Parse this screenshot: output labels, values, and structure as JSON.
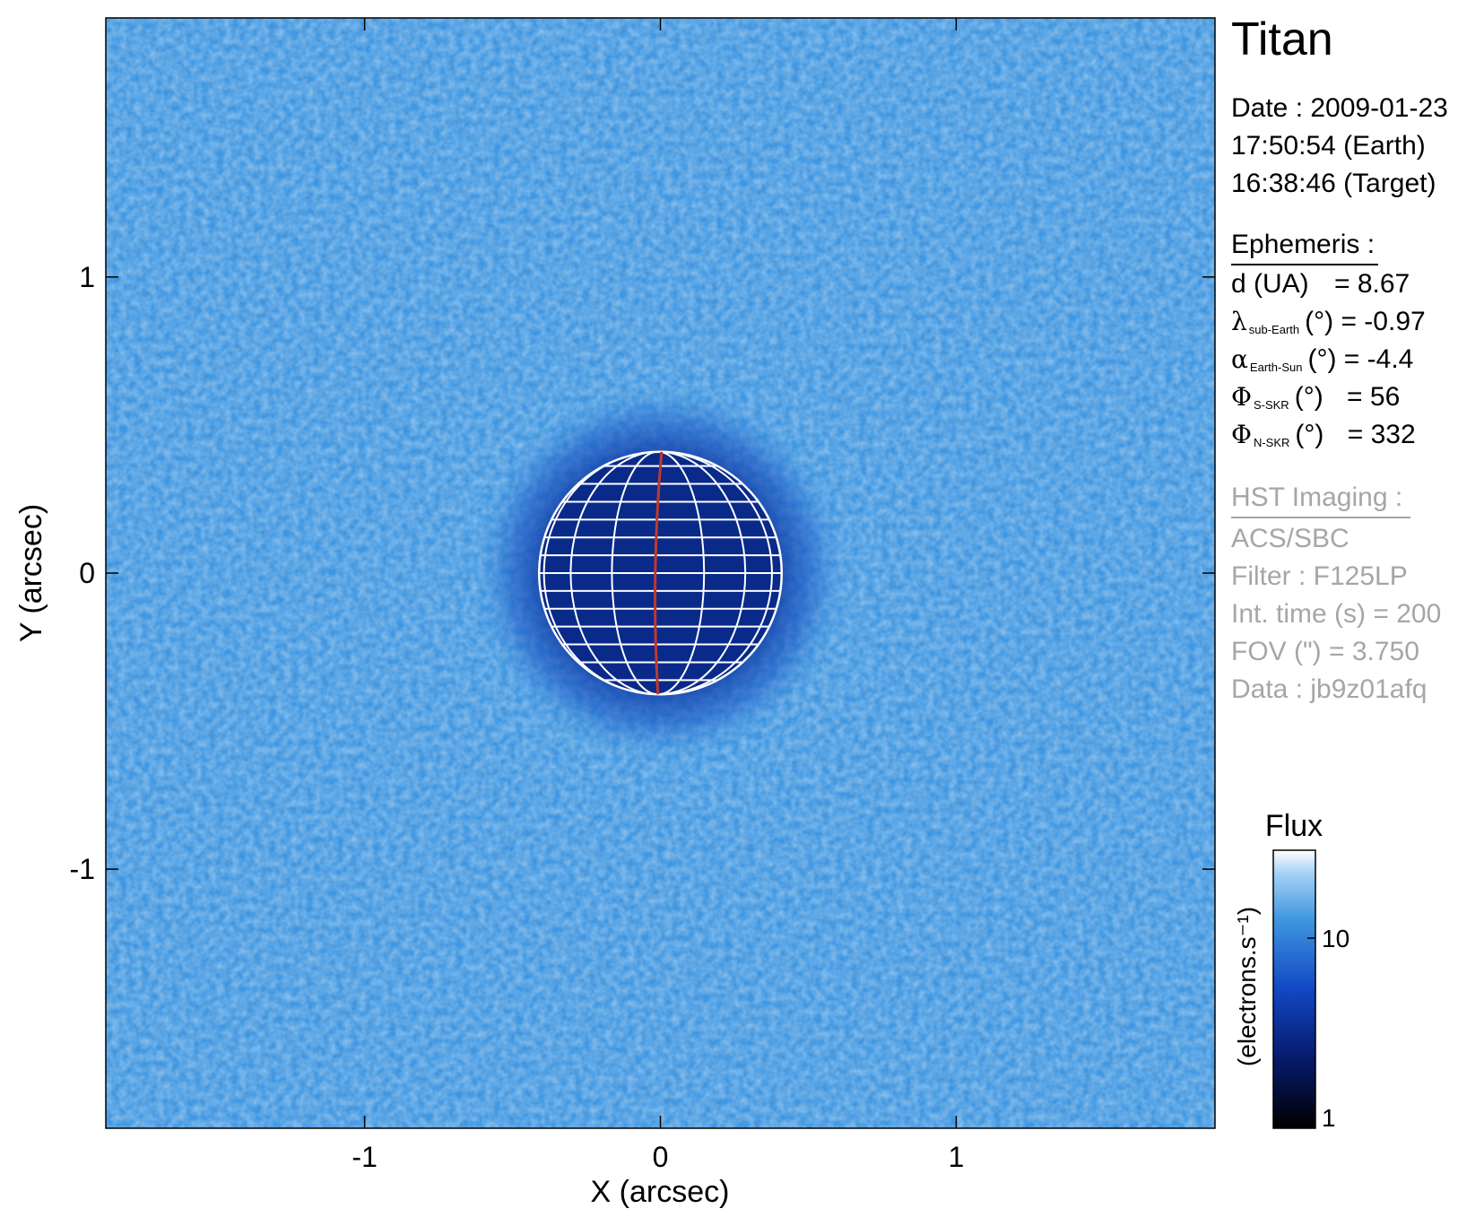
{
  "target": "Titan",
  "date": {
    "line1": "Date : 2009-01-23",
    "line2": "17:50:54 (Earth)",
    "line3": "16:38:46 (Target)"
  },
  "ephemeris": {
    "heading": "Ephemeris :",
    "d": {
      "label": "d (UA)",
      "value": "= 8.67"
    },
    "lambda": {
      "symbol": "λ",
      "sub": "sub-Earth",
      "unit": "(°)",
      "value": "= -0.97"
    },
    "alpha": {
      "symbol": "α",
      "sub": "Earth-Sun",
      "unit": "(°)",
      "value": "= -4.4"
    },
    "phi_s": {
      "symbol": "Φ",
      "sub": "S-SKR",
      "unit": "(°)",
      "value": "= 56"
    },
    "phi_n": {
      "symbol": "Φ",
      "sub": "N-SKR",
      "unit": "(°)",
      "value": "= 332"
    }
  },
  "hst": {
    "heading": "HST Imaging :",
    "instrument": "ACS/SBC",
    "filter": "Filter : F125LP",
    "int_time": "Int. time (s) = 200",
    "fov": "FOV (\") = 3.750",
    "data": "Data : jb9z01afq"
  },
  "plot": {
    "xlabel": "X (arcsec)",
    "ylabel": "Y (arcsec)",
    "xticks": [
      -1,
      0,
      1
    ],
    "yticks": [
      1,
      0,
      -1
    ],
    "xlim": [
      -1.875,
      1.875
    ],
    "ylim": [
      -1.875,
      1.875
    ]
  },
  "planet": {
    "center_x": 0,
    "center_y": 0,
    "radius_arcsec": 0.41,
    "central_meridian_color": "#c0392b",
    "grid_color": "#ffffff"
  },
  "colorbar": {
    "title": "Flux",
    "label": "(electrons.s⁻¹)",
    "ticks": [
      "10",
      "1"
    ]
  },
  "colors": {
    "background_blue": "#3f96e0",
    "disk_blue": "#0a2a8a"
  }
}
